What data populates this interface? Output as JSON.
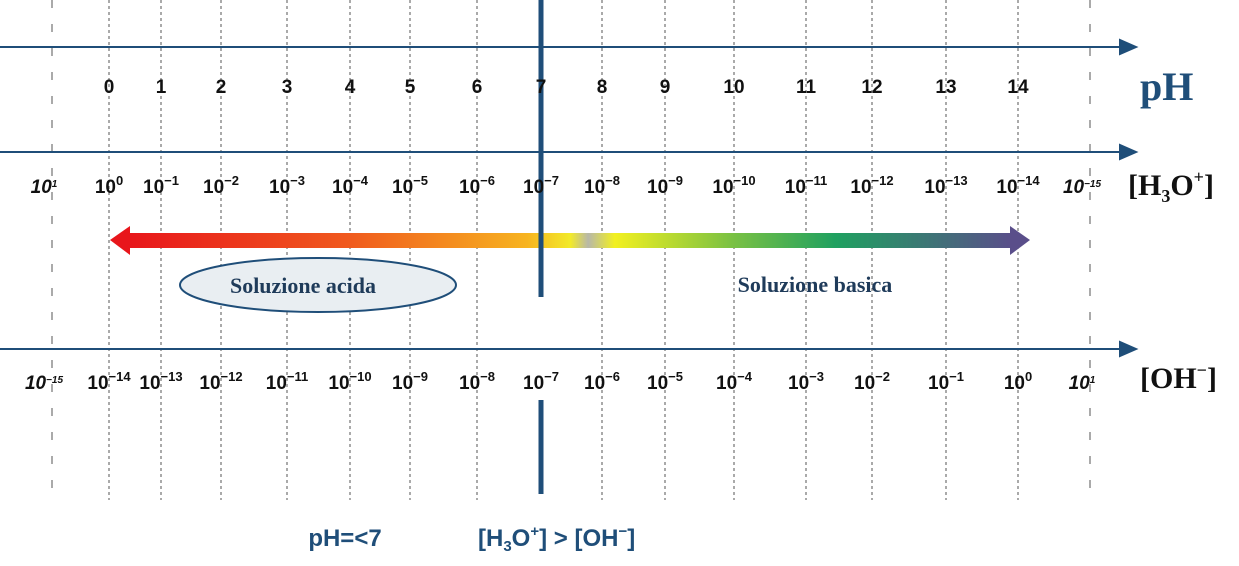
{
  "ph_axis": {
    "label": "pH",
    "ticks": [
      "0",
      "1",
      "2",
      "3",
      "4",
      "5",
      "6",
      "7",
      "8",
      "9",
      "10",
      "11",
      "12",
      "13",
      "14"
    ]
  },
  "h3o_axis": {
    "label": [
      "[H",
      "3",
      "O",
      "+",
      "]"
    ],
    "ticks": [
      {
        "base": "10",
        "exp": "1"
      },
      {
        "base": "10",
        "exp": "0"
      },
      {
        "base": "10",
        "exp": "−1"
      },
      {
        "base": "10",
        "exp": "−2"
      },
      {
        "base": "10",
        "exp": "−3"
      },
      {
        "base": "10",
        "exp": "−4"
      },
      {
        "base": "10",
        "exp": "−5"
      },
      {
        "base": "10",
        "exp": "−6"
      },
      {
        "base": "10",
        "exp": "−7"
      },
      {
        "base": "10",
        "exp": "−8"
      },
      {
        "base": "10",
        "exp": "−9"
      },
      {
        "base": "10",
        "exp": "−10"
      },
      {
        "base": "10",
        "exp": "−11"
      },
      {
        "base": "10",
        "exp": "−12"
      },
      {
        "base": "10",
        "exp": "−13"
      },
      {
        "base": "10",
        "exp": "−14"
      },
      {
        "base": "10",
        "exp": "−15"
      }
    ]
  },
  "oh_axis": {
    "label": [
      "[OH",
      "−",
      "]"
    ],
    "ticks": [
      {
        "base": "10",
        "exp": "−15"
      },
      {
        "base": "10",
        "exp": "−14"
      },
      {
        "base": "10",
        "exp": "−13"
      },
      {
        "base": "10",
        "exp": "−12"
      },
      {
        "base": "10",
        "exp": "−11"
      },
      {
        "base": "10",
        "exp": "−10"
      },
      {
        "base": "10",
        "exp": "−9"
      },
      {
        "base": "10",
        "exp": "−8"
      },
      {
        "base": "10",
        "exp": "−7"
      },
      {
        "base": "10",
        "exp": "−6"
      },
      {
        "base": "10",
        "exp": "−5"
      },
      {
        "base": "10",
        "exp": "−4"
      },
      {
        "base": "10",
        "exp": "−3"
      },
      {
        "base": "10",
        "exp": "−2"
      },
      {
        "base": "10",
        "exp": "−1"
      },
      {
        "base": "10",
        "exp": "0"
      },
      {
        "base": "10",
        "exp": "1"
      }
    ]
  },
  "regions": {
    "acid": "Soluzione acida",
    "basic": "Soluzione basica"
  },
  "footer": {
    "condition": "pH=<7",
    "relation": [
      "[H",
      "3",
      "O",
      "+",
      "] > [OH",
      "−",
      "]"
    ]
  }
}
